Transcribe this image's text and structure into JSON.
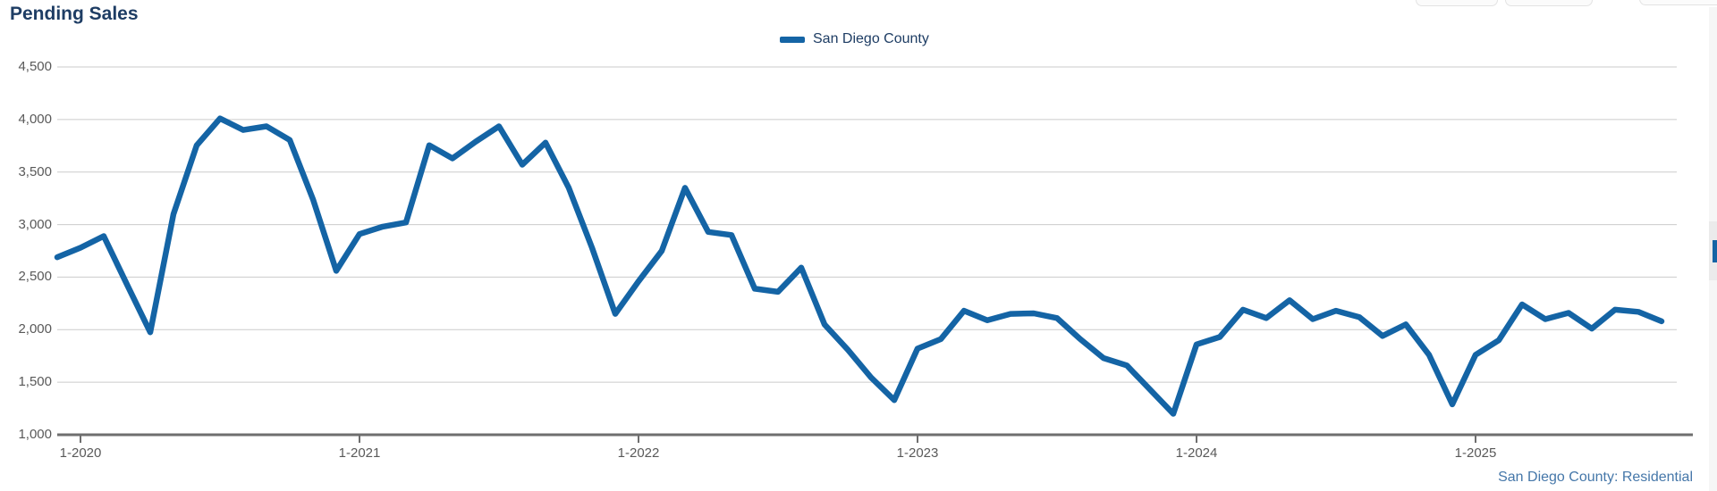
{
  "page": {
    "title": "Pending Sales"
  },
  "legend": {
    "label": "San Diego County"
  },
  "footer": {
    "note": "San Diego County: Residential"
  },
  "colors": {
    "line": "#1464A5",
    "title_text": "#1E3D64",
    "axis_label": "#595959",
    "gridline": "#cbcbcb",
    "axis_line": "#6e6e6e",
    "footer_text": "#4577A9",
    "scrollbar_thumb": "#1464A5"
  },
  "chart_data": {
    "type": "line",
    "title": "Pending Sales",
    "legend_position": "top-center",
    "grid": "horizontal",
    "ylim": [
      1000,
      4500
    ],
    "xlabel": "",
    "ylabel": "",
    "x": [
      "12-2019",
      "1-2020",
      "2-2020",
      "3-2020",
      "4-2020",
      "5-2020",
      "6-2020",
      "7-2020",
      "8-2020",
      "9-2020",
      "10-2020",
      "11-2020",
      "12-2020",
      "1-2021",
      "2-2021",
      "3-2021",
      "4-2021",
      "5-2021",
      "6-2021",
      "7-2021",
      "8-2021",
      "9-2021",
      "10-2021",
      "11-2021",
      "12-2021",
      "1-2022",
      "2-2022",
      "3-2022",
      "4-2022",
      "5-2022",
      "6-2022",
      "7-2022",
      "8-2022",
      "9-2022",
      "10-2022",
      "11-2022",
      "12-2022",
      "1-2023",
      "2-2023",
      "3-2023",
      "4-2023",
      "5-2023",
      "6-2023",
      "7-2023",
      "8-2023",
      "9-2023",
      "10-2023",
      "11-2023",
      "12-2023",
      "1-2024",
      "2-2024",
      "3-2024",
      "4-2024",
      "5-2024",
      "6-2024",
      "7-2024",
      "8-2024",
      "9-2024",
      "10-2024",
      "11-2024",
      "12-2024",
      "1-2025",
      "2-2025",
      "3-2025",
      "4-2025",
      "5-2025",
      "6-2025",
      "7-2025",
      "8-2025",
      "9-2025"
    ],
    "series": [
      {
        "name": "San Diego County",
        "values": [
          2690,
          2780,
          2890,
          2430,
          1975,
          3100,
          3755,
          4010,
          3900,
          3935,
          3805,
          3240,
          2560,
          2910,
          2980,
          3020,
          3755,
          3630,
          3790,
          3935,
          3570,
          3780,
          3350,
          2780,
          2150,
          2460,
          2750,
          3350,
          2930,
          2900,
          2390,
          2360,
          2590,
          2050,
          1810,
          1545,
          1330,
          1820,
          1910,
          2180,
          2090,
          2150,
          2155,
          2110,
          1910,
          1730,
          1660,
          1430,
          1200,
          1860,
          1930,
          2190,
          2110,
          2280,
          2100,
          2180,
          2120,
          1940,
          2050,
          1760,
          1290,
          1760,
          1900,
          2240,
          2100,
          2160,
          2010,
          2190,
          2170,
          2080
        ]
      }
    ],
    "y_ticks": [
      {
        "value": 4500,
        "label": "4,500"
      },
      {
        "value": 4000,
        "label": "4,000"
      },
      {
        "value": 3500,
        "label": "3,500"
      },
      {
        "value": 3000,
        "label": "3,000"
      },
      {
        "value": 2500,
        "label": "2,500"
      },
      {
        "value": 2000,
        "label": "2,000"
      },
      {
        "value": 1500,
        "label": "1,500"
      },
      {
        "value": 1000,
        "label": "1,000"
      }
    ],
    "x_tick_labels": [
      "1-2020",
      "1-2021",
      "1-2022",
      "1-2023",
      "1-2024",
      "1-2025"
    ]
  },
  "scrollbar": {
    "thumb_icon": "scroll-thumb"
  },
  "top_chips": {
    "count": "3"
  }
}
